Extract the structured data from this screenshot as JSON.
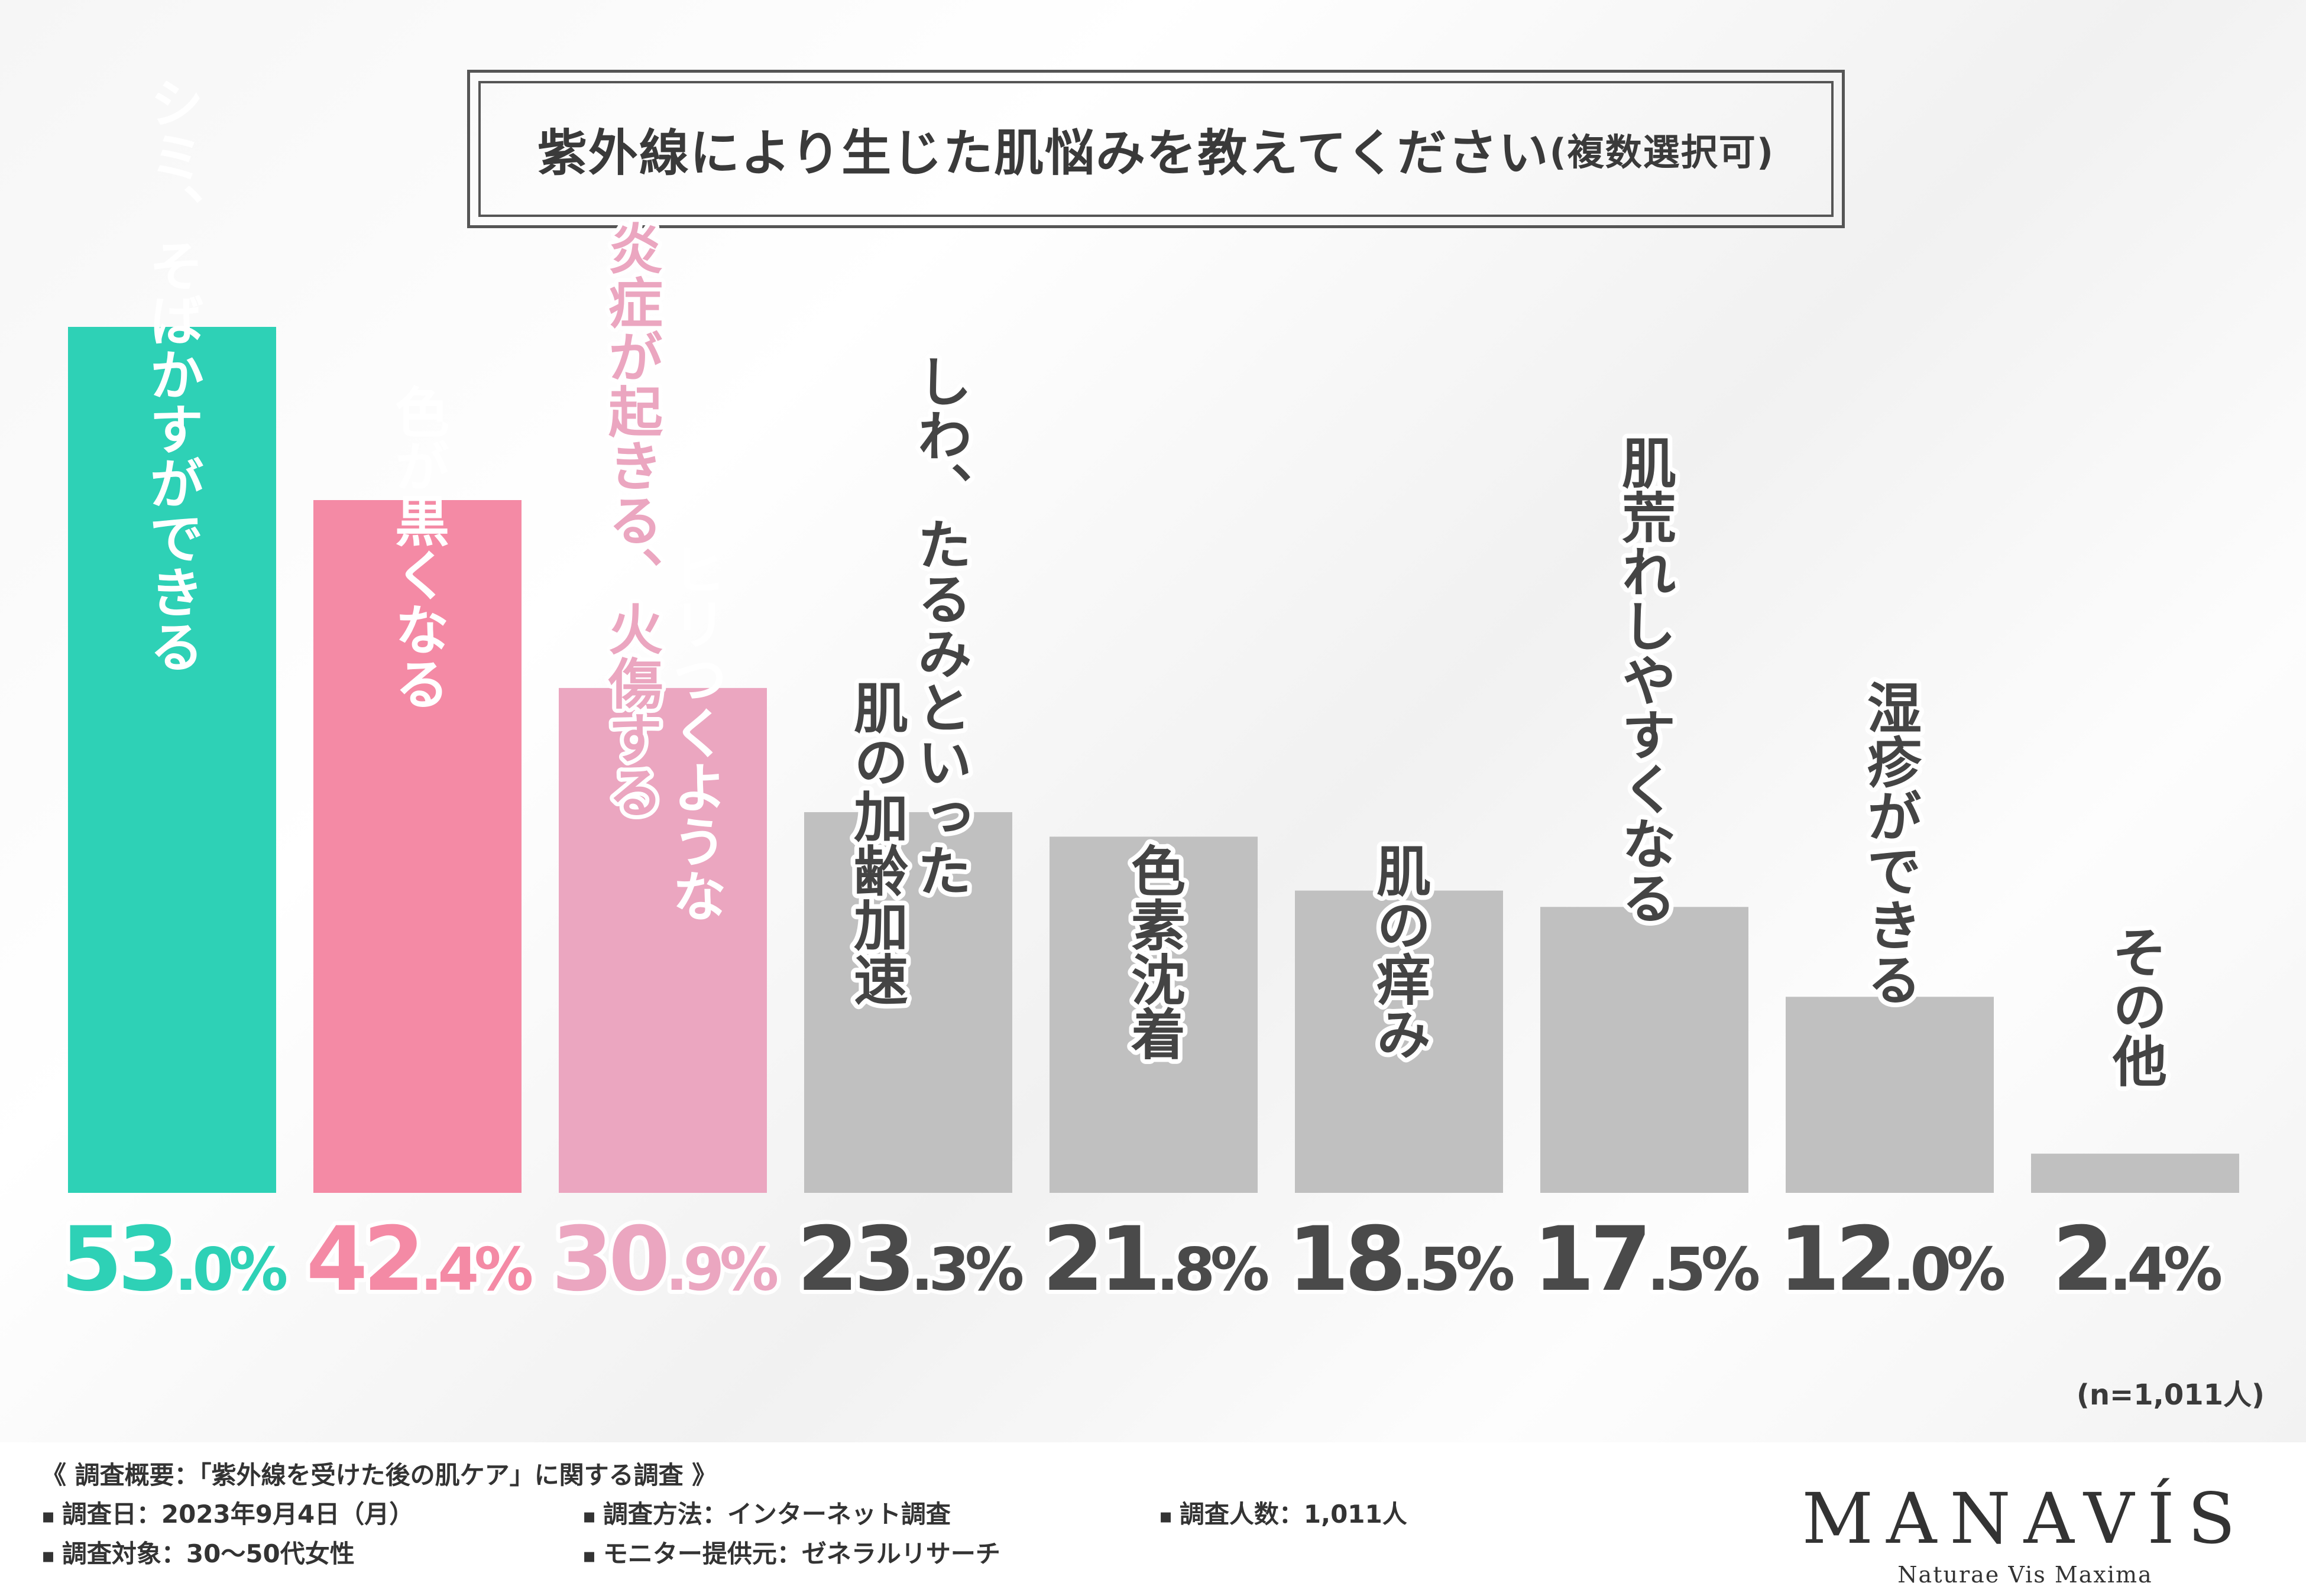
{
  "title": {
    "main": "紫外線により生じた肌悩みを教えてください",
    "sub": "(複数選択可)"
  },
  "colors": {
    "teal": "#2ed1b6",
    "pink": "#f48aa5",
    "light_pink": "#eba6c0",
    "gray": "#c0c0c0",
    "pct_gray": "#4a4a4a"
  },
  "chart_data": {
    "type": "bar",
    "title": "紫外線により生じた肌悩みを教えてください(複数選択可)",
    "categories": [
      "シミ、そばかすができる",
      "色が黒くなる",
      "炎症が起きる、ヒリつくような火傷する",
      "しわ、たるみといった肌の加齢加速",
      "色素沈着",
      "肌の痒み",
      "肌荒れしやすくなる",
      "湿疹ができる",
      "その他"
    ],
    "labels": [
      [
        "シミ、そばかすができる"
      ],
      [
        "色が黒くなる"
      ],
      [
        "ヒリつくような",
        "炎症が起きる、火傷する"
      ],
      [
        "しわ、たるみといった",
        "肌の加齢加速"
      ],
      [
        "色素沈着"
      ],
      [
        "肌の痒み"
      ],
      [
        "肌荒れしやすくなる"
      ],
      [
        "湿疹ができる"
      ],
      [
        "その他"
      ]
    ],
    "values": [
      53.0,
      42.4,
      30.9,
      23.3,
      21.8,
      18.5,
      17.5,
      12.0,
      2.4
    ],
    "value_labels": [
      [
        "53",
        ".0%"
      ],
      [
        "42",
        ".4%"
      ],
      [
        "30",
        ".9%"
      ],
      [
        "23",
        ".3%"
      ],
      [
        "21",
        ".8%"
      ],
      [
        "18",
        ".5%"
      ],
      [
        "17",
        ".5%"
      ],
      [
        "12",
        ".0%"
      ],
      [
        "2",
        ".4%"
      ]
    ],
    "bar_colors": [
      "#2ed1b6",
      "#f48aa5",
      "#eba6c0",
      "#c0c0c0",
      "#c0c0c0",
      "#c0c0c0",
      "#c0c0c0",
      "#c0c0c0",
      "#c0c0c0"
    ],
    "pct_colors": [
      "#2ed1b6",
      "#f48aa5",
      "#eba6c0",
      "#4a4a4a",
      "#4a4a4a",
      "#4a4a4a",
      "#4a4a4a",
      "#4a4a4a",
      "#4a4a4a"
    ],
    "ylim": [
      0,
      53.0
    ],
    "grid": false
  },
  "sample_size": "(n=1,011人)",
  "footer": {
    "heading": "《 調査概要：「紫外線を受けた後の肌ケア」に関する調査 》",
    "date": "調査日：2023年9月4日（月）",
    "method": "調査方法：インターネット調査",
    "count": "調査人数：1,011人",
    "target": "調査対象：30〜50代女性",
    "provider": "モニター提供元：ゼネラルリサーチ"
  },
  "logo": {
    "brand": "MANAVÍS",
    "tagline": "Naturae Vis Maxima"
  }
}
